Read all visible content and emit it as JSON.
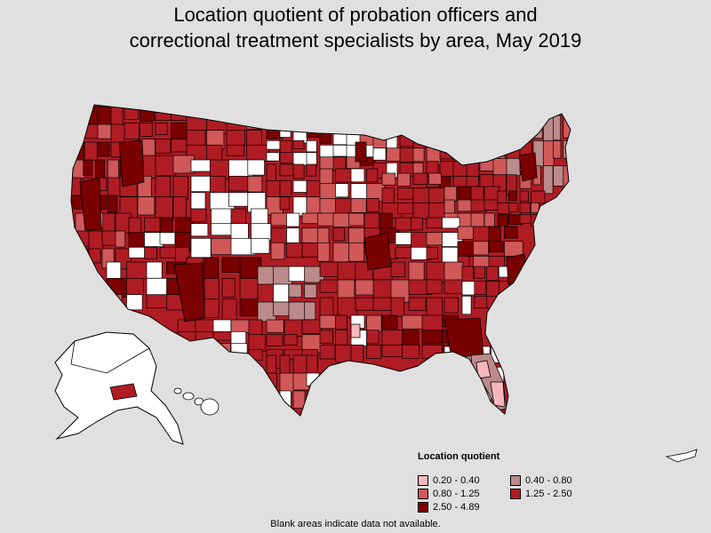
{
  "title": {
    "line1": "Location quotient of probation officers and",
    "line2": "correctional treatment specialists by area, May 2019"
  },
  "legend": {
    "title": "Location quotient",
    "items": [
      {
        "label": "0.20 - 0.40",
        "color": "#f5b7bd"
      },
      {
        "label": "0.40 - 0.80",
        "color": "#bb8a8a"
      },
      {
        "label": "0.80 - 1.25",
        "color": "#d05858"
      },
      {
        "label": "1.25 - 2.50",
        "color": "#b01c24"
      },
      {
        "label": "2.50 - 4.89",
        "color": "#7a0000"
      }
    ]
  },
  "footnote": "Blank areas indicate data not available.",
  "colors": {
    "background": "#e0e0e0",
    "no_data": "#ffffff",
    "border": "#000000"
  }
}
